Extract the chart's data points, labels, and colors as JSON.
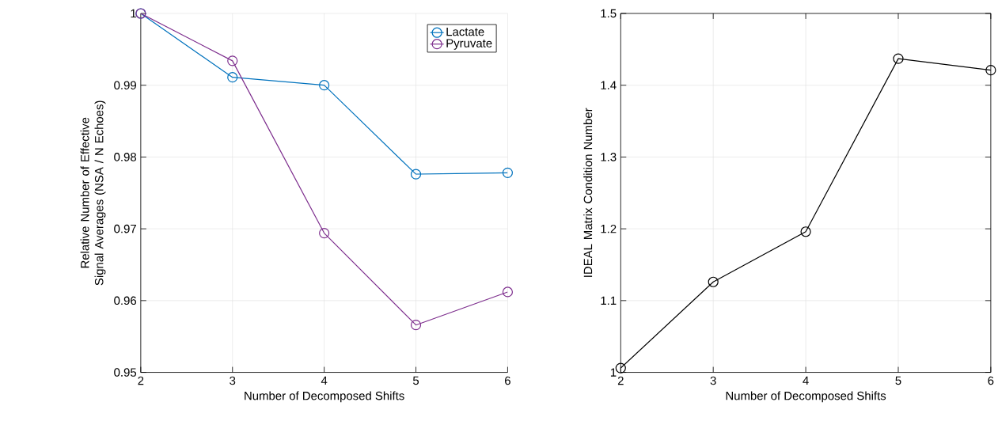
{
  "chart_data": [
    {
      "type": "line",
      "xlabel": "Number of Decomposed Shifts",
      "ylabel": "Relative Number of Effective Signal Averages (NSA / N Echoes)",
      "x": [
        2,
        3,
        4,
        5,
        6
      ],
      "xlim": [
        2,
        6
      ],
      "xticks": [
        2,
        3,
        4,
        5,
        6
      ],
      "ylim": [
        0.95,
        1
      ],
      "yticks": [
        0.95,
        0.96,
        0.97,
        0.98,
        0.99,
        1
      ],
      "grid": true,
      "legend": "top right",
      "marker": "circle",
      "line_style": "solid",
      "series": [
        {
          "name": "Lactate",
          "color": "#0072bd",
          "values": [
            1,
            0.9911,
            0.99,
            0.9776,
            0.9778
          ]
        },
        {
          "name": "Pyruvate",
          "color": "#7e2f8e",
          "values": [
            1,
            0.9934,
            0.9694,
            0.9566,
            0.9612
          ]
        }
      ]
    },
    {
      "type": "line",
      "xlabel": "Number of Decomposed Shifts",
      "ylabel": "IDEAL Matrix Condition Number",
      "x": [
        2,
        3,
        4,
        5,
        6
      ],
      "xlim": [
        2,
        6
      ],
      "xticks": [
        2,
        3,
        4,
        5,
        6
      ],
      "ylim": [
        1,
        1.5
      ],
      "yticks": [
        1,
        1.1,
        1.2,
        1.3,
        1.4,
        1.5
      ],
      "grid": true,
      "marker": "circle",
      "line_style": "solid",
      "series": [
        {
          "color": "#000000",
          "values": [
            1.006,
            1.126,
            1.196,
            1.437,
            1.421
          ]
        }
      ]
    }
  ]
}
